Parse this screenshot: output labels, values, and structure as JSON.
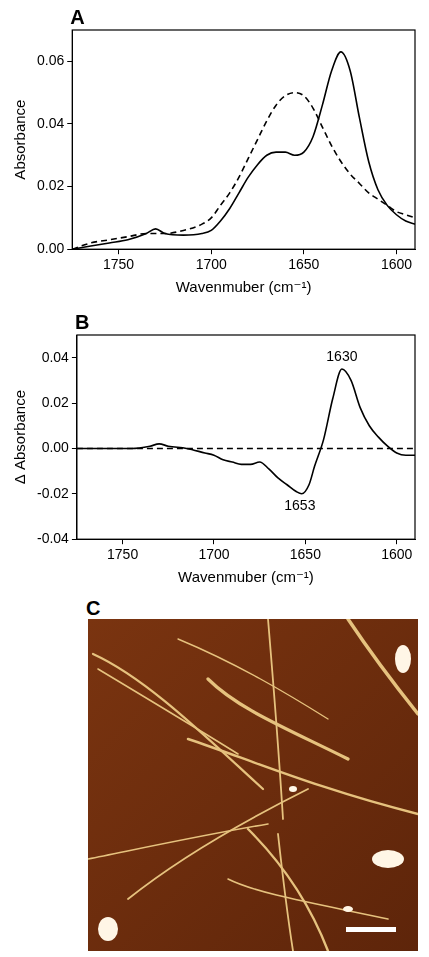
{
  "chart_data": [
    {
      "type": "line",
      "title": "A",
      "x_label": "Wavenmuber (cm⁻¹)",
      "y_label": "Absorbance",
      "x": [
        1775,
        1765,
        1755,
        1745,
        1735,
        1730,
        1725,
        1715,
        1705,
        1700,
        1695,
        1690,
        1685,
        1680,
        1675,
        1670,
        1665,
        1660,
        1655,
        1650,
        1645,
        1640,
        1635,
        1630,
        1625,
        1620,
        1615,
        1610,
        1605,
        1600,
        1595,
        1590
      ],
      "series": [
        {
          "color": "#000000",
          "line_style": "solid",
          "values": [
            0.0,
            0.001,
            0.002,
            0.003,
            0.005,
            0.0065,
            0.005,
            0.0045,
            0.005,
            0.006,
            0.009,
            0.013,
            0.018,
            0.023,
            0.027,
            0.03,
            0.031,
            0.031,
            0.03,
            0.031,
            0.036,
            0.046,
            0.057,
            0.063,
            0.057,
            0.042,
            0.028,
            0.019,
            0.014,
            0.011,
            0.009,
            0.008
          ]
        },
        {
          "color": "#000000",
          "line_style": "dashed",
          "values": [
            0.0,
            0.002,
            0.003,
            0.004,
            0.005,
            0.005,
            0.005,
            0.006,
            0.008,
            0.01,
            0.014,
            0.018,
            0.023,
            0.029,
            0.035,
            0.041,
            0.046,
            0.049,
            0.05,
            0.049,
            0.045,
            0.039,
            0.033,
            0.028,
            0.024,
            0.021,
            0.018,
            0.016,
            0.014,
            0.012,
            0.011,
            0.01
          ]
        }
      ],
      "xlim": [
        1775,
        1590
      ],
      "xticks": [
        1750,
        1700,
        1650,
        1600
      ],
      "ylim": [
        0,
        0.07
      ],
      "yticks": [
        {
          "value": 0,
          "label": "0.00"
        },
        {
          "value": 0.02,
          "label": "0.02"
        },
        {
          "value": 0.04,
          "label": "0.04"
        },
        {
          "value": 0.06,
          "label": "0.06"
        }
      ],
      "grid": false
    },
    {
      "type": "line",
      "title": "B",
      "x_label": "Wavenmuber (cm⁻¹)",
      "y_label": "Δ Absorbance",
      "x": [
        1775,
        1760,
        1745,
        1735,
        1730,
        1725,
        1715,
        1705,
        1700,
        1695,
        1690,
        1685,
        1680,
        1675,
        1670,
        1665,
        1660,
        1655,
        1652,
        1648,
        1645,
        1640,
        1635,
        1630,
        1625,
        1620,
        1615,
        1610,
        1605,
        1600,
        1595,
        1590
      ],
      "series": [
        {
          "color": "#000000",
          "line_style": "solid",
          "values": [
            0.0,
            0.0,
            0.0,
            0.001,
            0.002,
            0.001,
            0.0,
            -0.002,
            -0.003,
            -0.005,
            -0.006,
            -0.007,
            -0.007,
            -0.006,
            -0.009,
            -0.013,
            -0.016,
            -0.019,
            -0.02,
            -0.016,
            -0.008,
            0.004,
            0.022,
            0.035,
            0.03,
            0.018,
            0.01,
            0.005,
            0.001,
            -0.002,
            -0.003,
            -0.003
          ]
        },
        {
          "color": "#000000",
          "line_style": "dashed",
          "x": [
            1775,
            1590
          ],
          "values": [
            0,
            0
          ]
        }
      ],
      "annotations": [
        {
          "text": "1630",
          "x": 1630,
          "y": 0.035
        },
        {
          "text": "1653",
          "x": 1653,
          "y": -0.02
        }
      ],
      "xlim": [
        1775,
        1590
      ],
      "xticks": [
        1750,
        1700,
        1650,
        1600
      ],
      "ylim": [
        -0.04,
        0.05
      ],
      "yticks": [
        {
          "value": -0.04,
          "label": "-0.04"
        },
        {
          "value": -0.02,
          "label": "-0.02"
        },
        {
          "value": 0,
          "label": "0.00"
        },
        {
          "value": 0.02,
          "label": "0.02"
        },
        {
          "value": 0.04,
          "label": "0.04"
        }
      ],
      "grid": false
    },
    {
      "type": "image",
      "title": "C"
    }
  ]
}
